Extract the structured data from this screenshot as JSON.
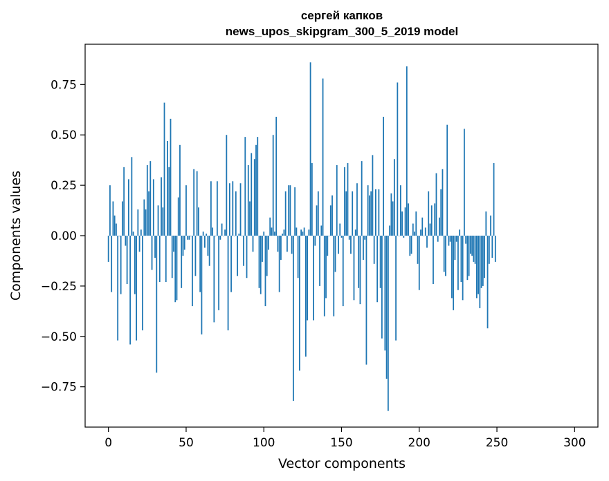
{
  "chart_data": {
    "type": "bar",
    "title_line1": "сергей капков",
    "title_line2": "news_upos_skipgram_300_5_2019 model",
    "xlabel": "Vector components",
    "ylabel": "Components values",
    "xlim": [
      -15,
      315
    ],
    "ylim": [
      -0.95,
      0.95
    ],
    "xticks": [
      0,
      50,
      100,
      150,
      200,
      250,
      300
    ],
    "yticks": [
      -0.75,
      -0.5,
      -0.25,
      0.0,
      0.25,
      0.5,
      0.75
    ],
    "ytick_labels": [
      "−0.75",
      "−0.50",
      "−0.25",
      "0.00",
      "0.25",
      "0.50",
      "0.75"
    ],
    "bar_color": "#1f77b4",
    "grid": false,
    "values": [
      -0.13,
      0.25,
      -0.28,
      0.17,
      0.1,
      0.06,
      -0.52,
      0.0,
      -0.29,
      0.17,
      0.34,
      -0.05,
      -0.24,
      0.28,
      -0.54,
      0.39,
      0.02,
      -0.29,
      -0.52,
      0.13,
      -0.08,
      0.03,
      -0.47,
      0.18,
      0.13,
      0.35,
      0.22,
      0.37,
      -0.17,
      0.28,
      -0.11,
      -0.68,
      0.15,
      -0.23,
      0.29,
      0.14,
      0.66,
      -0.23,
      0.47,
      0.34,
      0.58,
      -0.21,
      -0.08,
      -0.33,
      -0.32,
      0.19,
      0.45,
      -0.26,
      -0.1,
      -0.07,
      0.25,
      -0.02,
      -0.02,
      0.0,
      -0.35,
      0.33,
      -0.2,
      0.32,
      0.14,
      -0.28,
      -0.49,
      0.02,
      -0.06,
      0.01,
      -0.1,
      -0.15,
      0.27,
      0.04,
      -0.43,
      0.0,
      0.27,
      -0.37,
      -0.02,
      0.06,
      0.0,
      0.03,
      0.5,
      -0.47,
      0.26,
      -0.28,
      0.27,
      0.0,
      0.22,
      -0.2,
      0.01,
      0.26,
      0.0,
      -0.15,
      0.49,
      -0.21,
      0.35,
      0.17,
      0.41,
      -0.08,
      0.38,
      0.45,
      0.49,
      -0.26,
      -0.29,
      -0.13,
      0.02,
      -0.35,
      -0.2,
      -0.07,
      0.09,
      0.04,
      0.5,
      0.02,
      0.59,
      -0.08,
      -0.28,
      -0.12,
      0.01,
      0.03,
      0.22,
      -0.08,
      0.25,
      0.25,
      -0.09,
      -0.82,
      0.24,
      0.04,
      -0.21,
      -0.67,
      0.03,
      0.02,
      0.04,
      -0.6,
      -0.42,
      0.03,
      0.86,
      0.36,
      -0.42,
      -0.05,
      0.15,
      0.22,
      -0.25,
      0.05,
      0.78,
      -0.4,
      -0.31,
      -0.1,
      0.0,
      0.15,
      0.2,
      -0.4,
      -0.18,
      0.35,
      -0.09,
      0.06,
      -0.01,
      -0.35,
      0.34,
      0.22,
      0.36,
      -0.02,
      -0.09,
      0.22,
      -0.32,
      0.03,
      0.26,
      -0.26,
      -0.34,
      0.37,
      -0.12,
      -0.02,
      -0.64,
      0.25,
      0.2,
      0.22,
      0.4,
      -0.14,
      0.23,
      -0.33,
      0.23,
      -0.26,
      -0.51,
      0.59,
      -0.57,
      -0.71,
      -0.87,
      0.05,
      0.21,
      0.17,
      0.38,
      -0.52,
      0.76,
      0.0,
      0.25,
      0.12,
      -0.01,
      0.14,
      0.84,
      0.16,
      -0.1,
      -0.09,
      0.06,
      0.02,
      0.12,
      -0.14,
      -0.27,
      0.03,
      0.09,
      0.0,
      0.04,
      -0.06,
      0.22,
      0.06,
      0.15,
      -0.24,
      0.16,
      0.31,
      -0.03,
      0.09,
      0.23,
      0.33,
      -0.18,
      -0.2,
      0.55,
      -0.05,
      -0.03,
      -0.31,
      -0.37,
      -0.12,
      -0.03,
      -0.27,
      0.03,
      -0.23,
      -0.32,
      0.53,
      -0.04,
      -0.22,
      -0.2,
      -0.09,
      -0.1,
      -0.13,
      -0.14,
      -0.31,
      -0.29,
      -0.36,
      -0.26,
      -0.25,
      -0.21,
      0.12,
      -0.46,
      -0.14,
      0.1,
      -0.11,
      0.36,
      -0.13
    ]
  }
}
